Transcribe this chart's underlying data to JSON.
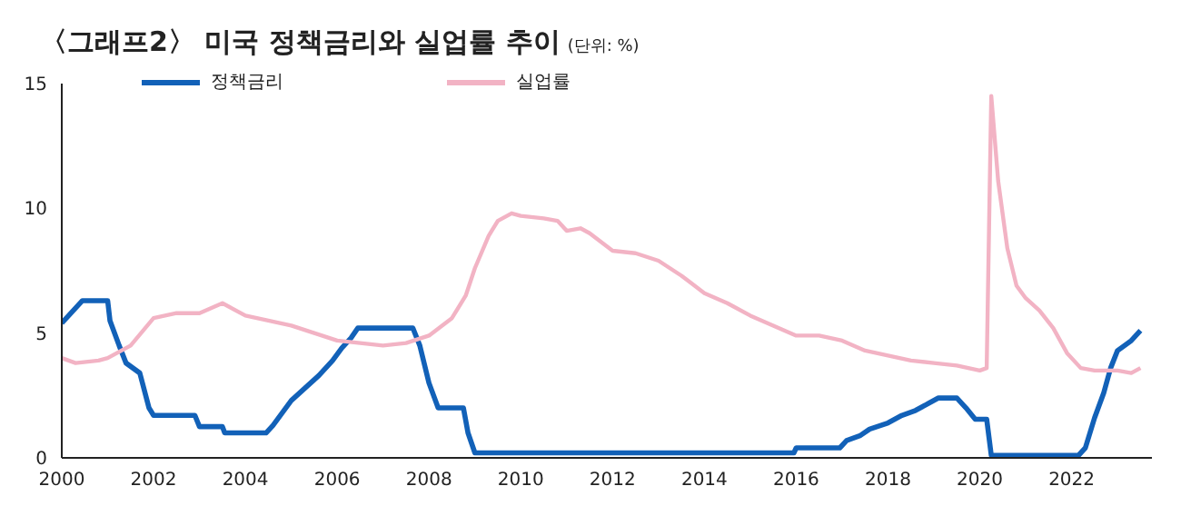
{
  "chart_data": {
    "type": "line",
    "title": "〈그래프2〉 미국 정책금리와 실업률 추이",
    "subtitle": "(단위: %)",
    "xlim": [
      2000,
      2023.75
    ],
    "xticks": [
      2000,
      2002,
      2004,
      2006,
      2008,
      2010,
      2012,
      2014,
      2016,
      2018,
      2020,
      2022
    ],
    "ylim": [
      0,
      15
    ],
    "yticks": [
      0,
      5,
      10,
      15
    ],
    "grid": false,
    "legend": "top",
    "marker": "none",
    "line_style": "solid",
    "series": [
      {
        "name": "정책금리",
        "color": "#1261b8",
        "x": [
          2000.0,
          2000.15,
          2000.3,
          2000.45,
          2001.0,
          2001.05,
          2001.25,
          2001.4,
          2001.7,
          2001.9,
          2002.0,
          2002.9,
          2003.0,
          2003.5,
          2003.55,
          2004.45,
          2004.6,
          2004.8,
          2005.0,
          2005.3,
          2005.6,
          2005.9,
          2006.1,
          2006.3,
          2006.45,
          2007.65,
          2007.8,
          2008.0,
          2008.2,
          2008.75,
          2008.85,
          2009.0,
          2015.95,
          2016.0,
          2016.95,
          2017.1,
          2017.4,
          2017.6,
          2018.0,
          2018.3,
          2018.6,
          2018.9,
          2019.1,
          2019.5,
          2019.7,
          2019.9,
          2020.15,
          2020.25,
          2022.15,
          2022.3,
          2022.5,
          2022.7,
          2022.85,
          2023.0,
          2023.3,
          2023.5
        ],
        "values": [
          5.4,
          5.7,
          6.0,
          6.3,
          6.3,
          5.5,
          4.5,
          3.8,
          3.4,
          2.0,
          1.7,
          1.7,
          1.25,
          1.25,
          1.0,
          1.0,
          1.3,
          1.8,
          2.3,
          2.8,
          3.3,
          3.9,
          4.4,
          4.8,
          5.2,
          5.2,
          4.5,
          3.0,
          2.0,
          2.0,
          1.0,
          0.2,
          0.2,
          0.4,
          0.4,
          0.7,
          0.9,
          1.15,
          1.4,
          1.7,
          1.9,
          2.2,
          2.4,
          2.4,
          2.0,
          1.55,
          1.55,
          0.1,
          0.1,
          0.4,
          1.6,
          2.6,
          3.6,
          4.3,
          4.7,
          5.1
        ]
      },
      {
        "name": "실업률",
        "color": "#f2b3c4",
        "x": [
          2000.0,
          2000.3,
          2000.8,
          2001.0,
          2001.5,
          2002.0,
          2002.5,
          2003.0,
          2003.5,
          2004.0,
          2004.5,
          2005.0,
          2005.5,
          2006.0,
          2006.5,
          2007.0,
          2007.5,
          2008.0,
          2008.5,
          2008.8,
          2009.0,
          2009.3,
          2009.5,
          2009.8,
          2010.0,
          2010.5,
          2010.8,
          2011.0,
          2011.3,
          2011.5,
          2012.0,
          2012.5,
          2013.0,
          2013.5,
          2014.0,
          2014.5,
          2015.0,
          2015.5,
          2016.0,
          2016.5,
          2017.0,
          2017.5,
          2018.0,
          2018.5,
          2019.0,
          2019.5,
          2020.0,
          2020.15,
          2020.25,
          2020.4,
          2020.6,
          2020.8,
          2021.0,
          2021.3,
          2021.6,
          2021.9,
          2022.2,
          2022.5,
          2023.0,
          2023.3,
          2023.5
        ],
        "values": [
          4.0,
          3.8,
          3.9,
          4.0,
          4.5,
          5.6,
          5.8,
          5.8,
          6.2,
          5.7,
          5.5,
          5.3,
          5.0,
          4.7,
          4.6,
          4.5,
          4.6,
          4.9,
          5.6,
          6.5,
          7.6,
          8.9,
          9.5,
          9.8,
          9.7,
          9.6,
          9.5,
          9.1,
          9.2,
          9.0,
          8.3,
          8.2,
          7.9,
          7.3,
          6.6,
          6.2,
          5.7,
          5.3,
          4.9,
          4.9,
          4.7,
          4.3,
          4.1,
          3.9,
          3.8,
          3.7,
          3.5,
          3.6,
          14.5,
          11.1,
          8.4,
          6.9,
          6.4,
          5.9,
          5.2,
          4.2,
          3.6,
          3.5,
          3.5,
          3.4,
          3.6
        ]
      }
    ]
  }
}
